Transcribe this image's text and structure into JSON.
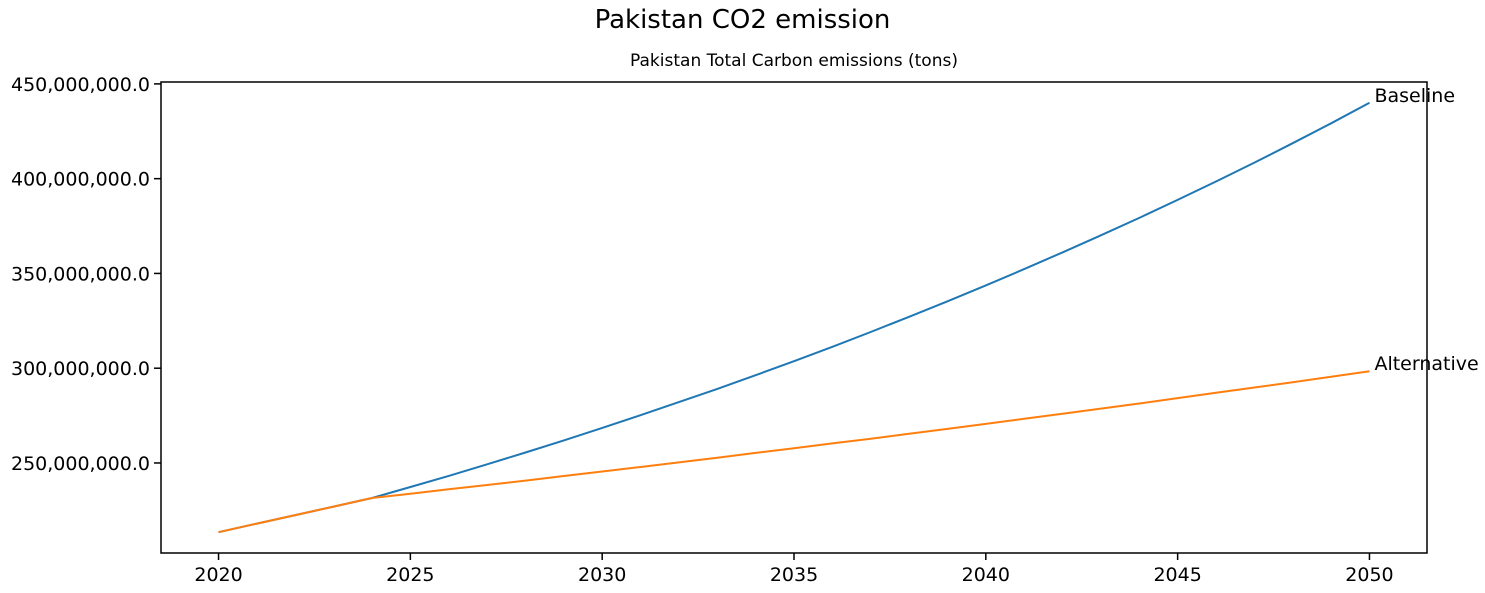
{
  "chart_data": {
    "type": "line",
    "title": "Pakistan CO2 emission",
    "axes_title": "Pakistan Total Carbon emissions (tons)",
    "xlabel": "",
    "ylabel": "",
    "grid": false,
    "legend_position": "inline-end-of-line-annotations",
    "xlim": [
      2018.5,
      2051.5
    ],
    "ylim": [
      202500000,
      451000000
    ],
    "x_ticks": [
      2020,
      2025,
      2030,
      2035,
      2040,
      2045,
      2050
    ],
    "x_tick_labels": [
      "2020",
      "2025",
      "2030",
      "2035",
      "2040",
      "2045",
      "2050"
    ],
    "y_ticks": [
      250000000,
      300000000,
      350000000,
      400000000,
      450000000
    ],
    "y_tick_labels": [
      "250,000,000.0",
      "300,000,000.0",
      "350,000,000.0",
      "400,000,000.0",
      "450,000,000.0"
    ],
    "x": [
      2020,
      2021,
      2022,
      2023,
      2024,
      2025,
      2026,
      2027,
      2028,
      2029,
      2030,
      2031,
      2032,
      2033,
      2034,
      2035,
      2036,
      2037,
      2038,
      2039,
      2040,
      2041,
      2042,
      2043,
      2044,
      2045,
      2046,
      2047,
      2048,
      2049,
      2050
    ],
    "series": [
      {
        "name": "Baseline",
        "color": "#1f77b4",
        "values": [
          213500000,
          218000000,
          222500000,
          227000000,
          231500000,
          237300000,
          243200000,
          249300000,
          255500000,
          261900000,
          268500000,
          275200000,
          282100000,
          289100000,
          296300000,
          303700000,
          311300000,
          319100000,
          327100000,
          335300000,
          343700000,
          352300000,
          361100000,
          370100000,
          379300000,
          388800000,
          398500000,
          408500000,
          418700000,
          429200000,
          440000000
        ]
      },
      {
        "name": "Alternative",
        "color": "#ff7f0e",
        "values": [
          213500000,
          218000000,
          222500000,
          227000000,
          231500000,
          233800000,
          236100000,
          238400000,
          240700000,
          243100000,
          245500000,
          247900000,
          250300000,
          252800000,
          255300000,
          257800000,
          260300000,
          262800000,
          265400000,
          268000000,
          270600000,
          273300000,
          276000000,
          278700000,
          281400000,
          284200000,
          287000000,
          289800000,
          292600000,
          295500000,
          298400000
        ]
      }
    ],
    "colors": {
      "background": "#ffffff",
      "spines": "#000000",
      "text": "#000000"
    }
  }
}
